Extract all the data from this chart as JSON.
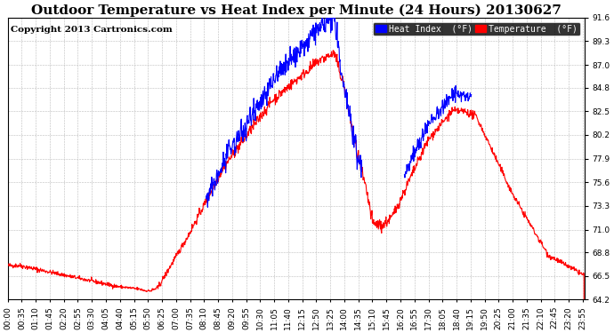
{
  "title": "Outdoor Temperature vs Heat Index per Minute (24 Hours) 20130627",
  "copyright": "Copyright 2013 Cartronics.com",
  "legend_heat_index": "Heat Index  (°F)",
  "legend_temperature": "Temperature  (°F)",
  "heat_index_color": "#0000ff",
  "temperature_color": "#ff0000",
  "background_color": "#ffffff",
  "plot_bg_color": "#ffffff",
  "grid_color": "#bbbbbb",
  "ylim": [
    64.2,
    91.6
  ],
  "yticks": [
    64.2,
    66.5,
    68.8,
    71.0,
    73.3,
    75.6,
    77.9,
    80.2,
    82.5,
    84.8,
    87.0,
    89.3,
    91.6
  ],
  "title_fontsize": 11,
  "copyright_fontsize": 7.5,
  "tick_fontsize": 6.5,
  "legend_fontsize": 7,
  "num_minutes": 1440,
  "x_tick_interval": 35
}
